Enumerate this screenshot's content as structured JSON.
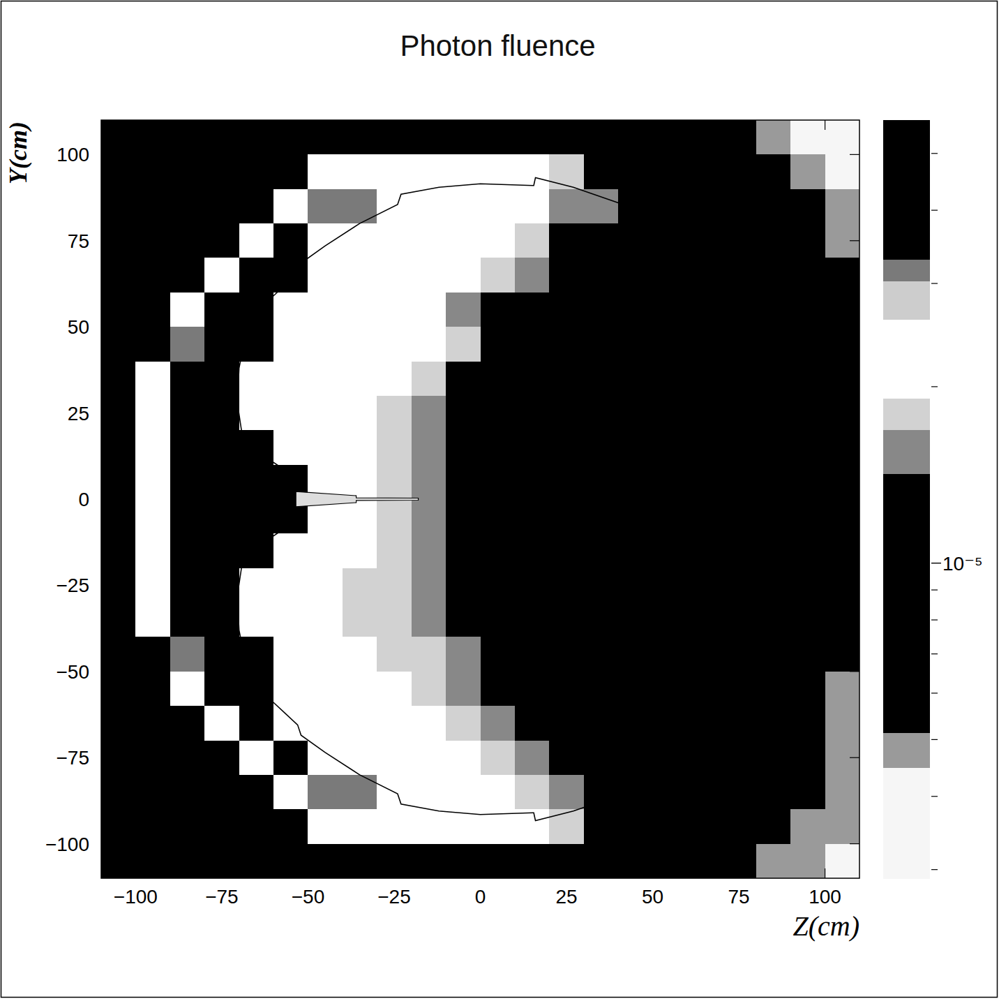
{
  "chart_data": {
    "type": "heatmap",
    "title": "Photon fluence",
    "x_label": "Z(cm)",
    "y_label": "Y(cm)",
    "xlim": [
      -110,
      110
    ],
    "ylim": [
      -110,
      110
    ],
    "xticks": [
      -100,
      -75,
      -50,
      -25,
      0,
      25,
      50,
      75,
      100
    ],
    "yticks": [
      -100,
      -75,
      -50,
      -25,
      0,
      25,
      50,
      75,
      100
    ],
    "log": true,
    "x_edges": [
      -110,
      -100,
      -90,
      -80,
      -70,
      -60,
      -50,
      -40,
      -30,
      -20,
      -10,
      0,
      10,
      20,
      30,
      40,
      50,
      60,
      70,
      80,
      90,
      100,
      110
    ],
    "y_edges": [
      110,
      100,
      90,
      80,
      70,
      60,
      50,
      40,
      30,
      20,
      10,
      0,
      -10,
      -20,
      -30,
      -40,
      -50,
      -60,
      -70,
      -80,
      -90,
      -100,
      -110
    ],
    "cells": [
      [
        7e-06,
        7e-06,
        7e-06,
        7e-06,
        7e-06,
        7e-06,
        7e-06,
        7e-06,
        7e-06,
        7e-06,
        7e-06,
        7e-06,
        7e-06,
        7e-06,
        7e-06,
        7e-06,
        7e-06,
        7e-06,
        7e-06,
        4.8e-06,
        3.5e-06,
        3.5e-06
      ],
      [
        7e-06,
        7e-06,
        7e-06,
        7e-06,
        7e-06,
        7e-06,
        2.2e-05,
        2.2e-05,
        2.2e-05,
        2.2e-05,
        2.2e-05,
        2.2e-05,
        2.2e-05,
        1.8e-05,
        7e-06,
        7e-06,
        7e-06,
        7e-06,
        7e-06,
        7e-06,
        4.8e-06,
        3.5e-06
      ],
      [
        7e-06,
        7e-06,
        7e-06,
        7e-06,
        7e-06,
        2.2e-05,
        3.1e-05,
        3.1e-05,
        2.2e-05,
        2.2e-05,
        2.2e-05,
        2.2e-05,
        2.2e-05,
        1.55e-05,
        1.55e-05,
        7e-06,
        7e-06,
        7e-06,
        7e-06,
        7e-06,
        7e-06,
        4.8e-06
      ],
      [
        7e-06,
        7e-06,
        7e-06,
        7e-06,
        2.2e-05,
        4e-05,
        2.2e-05,
        2.2e-05,
        2.2e-05,
        2.2e-05,
        2.2e-05,
        2.2e-05,
        1.8e-05,
        1.1e-05,
        1.1e-05,
        1.1e-05,
        1.1e-05,
        1.1e-05,
        7e-06,
        7e-06,
        7e-06,
        4.8e-06
      ],
      [
        7e-06,
        7e-06,
        7e-06,
        2.2e-05,
        4e-05,
        4e-05,
        2.2e-05,
        2.2e-05,
        2.2e-05,
        2.2e-05,
        2.2e-05,
        1.8e-05,
        1.55e-05,
        1.1e-05,
        1.1e-05,
        1.1e-05,
        1.1e-05,
        1.1e-05,
        7e-06,
        7e-06,
        7e-06,
        7e-06
      ],
      [
        7e-06,
        7e-06,
        2.2e-05,
        4e-05,
        4e-05,
        2.2e-05,
        2.2e-05,
        2.2e-05,
        2.2e-05,
        2.2e-05,
        1.55e-05,
        1.1e-05,
        1.1e-05,
        1.1e-05,
        1.1e-05,
        1.1e-05,
        1.1e-05,
        1.1e-05,
        1.1e-05,
        7e-06,
        7e-06,
        7e-06
      ],
      [
        7e-06,
        7e-06,
        3.1e-05,
        4e-05,
        4e-05,
        2.2e-05,
        2.2e-05,
        2.2e-05,
        2.2e-05,
        2.2e-05,
        1.8e-05,
        1.1e-05,
        1.1e-05,
        1.1e-05,
        1.1e-05,
        1.1e-05,
        1.1e-05,
        1.1e-05,
        1.1e-05,
        1.1e-05,
        7e-06,
        7e-06
      ],
      [
        7e-06,
        2.2e-05,
        4e-05,
        4e-05,
        2.2e-05,
        2.2e-05,
        2.2e-05,
        2.2e-05,
        2.2e-05,
        1.8e-05,
        1.1e-05,
        1.1e-05,
        1.1e-05,
        1.1e-05,
        1.1e-05,
        1.1e-05,
        1.1e-05,
        1.1e-05,
        1.1e-05,
        1.1e-05,
        7e-06,
        7e-06
      ],
      [
        7e-06,
        2.2e-05,
        4e-05,
        4e-05,
        2.2e-05,
        2.2e-05,
        2.2e-05,
        2.2e-05,
        1.8e-05,
        1.55e-05,
        1.1e-05,
        1.1e-05,
        1.1e-05,
        1.1e-05,
        1.1e-05,
        1.1e-05,
        1.1e-05,
        1.1e-05,
        1.1e-05,
        1.1e-05,
        1.1e-05,
        7e-06
      ],
      [
        7e-06,
        2.2e-05,
        4e-05,
        4e-05,
        4e-05,
        2.2e-05,
        2.2e-05,
        2.2e-05,
        1.8e-05,
        1.55e-05,
        1.1e-05,
        1.1e-05,
        1.1e-05,
        1.1e-05,
        1.1e-05,
        1.1e-05,
        1.1e-05,
        1.1e-05,
        1.1e-05,
        1.1e-05,
        1.1e-05,
        7e-06
      ],
      [
        7e-06,
        2.2e-05,
        4e-05,
        4e-05,
        4e-05,
        4e-05,
        2.2e-05,
        2.2e-05,
        1.8e-05,
        1.55e-05,
        1.1e-05,
        1.1e-05,
        1.1e-05,
        1.1e-05,
        1.1e-05,
        1.1e-05,
        1.1e-05,
        1.1e-05,
        1.1e-05,
        1.1e-05,
        1.1e-05,
        7e-06
      ],
      [
        7e-06,
        2.2e-05,
        4e-05,
        4e-05,
        4e-05,
        4e-05,
        2.2e-05,
        2.2e-05,
        1.8e-05,
        1.55e-05,
        1.1e-05,
        1.1e-05,
        1.1e-05,
        1.1e-05,
        1.1e-05,
        1.1e-05,
        1.1e-05,
        1.1e-05,
        1.1e-05,
        1.1e-05,
        1.1e-05,
        7e-06
      ],
      [
        7e-06,
        2.2e-05,
        4e-05,
        4e-05,
        4e-05,
        2.2e-05,
        2.2e-05,
        2.2e-05,
        1.8e-05,
        1.55e-05,
        1.1e-05,
        1.1e-05,
        1.1e-05,
        1.1e-05,
        1.1e-05,
        1.1e-05,
        1.1e-05,
        1.1e-05,
        1.1e-05,
        1.1e-05,
        1.1e-05,
        7e-06
      ],
      [
        7e-06,
        2.2e-05,
        4e-05,
        4e-05,
        2.2e-05,
        2.2e-05,
        2.2e-05,
        1.8e-05,
        1.8e-05,
        1.55e-05,
        1.1e-05,
        1.1e-05,
        1.1e-05,
        1.1e-05,
        1.1e-05,
        1.1e-05,
        1.1e-05,
        1.1e-05,
        1.1e-05,
        1.1e-05,
        1.1e-05,
        7e-06
      ],
      [
        7e-06,
        2.2e-05,
        4e-05,
        4e-05,
        2.2e-05,
        2.2e-05,
        2.2e-05,
        1.8e-05,
        1.8e-05,
        1.55e-05,
        1.1e-05,
        1.1e-05,
        1.1e-05,
        1.1e-05,
        1.1e-05,
        1.1e-05,
        1.1e-05,
        1.1e-05,
        1.1e-05,
        1.1e-05,
        7e-06,
        7e-06
      ],
      [
        7e-06,
        7e-06,
        3.1e-05,
        4e-05,
        4e-05,
        2.2e-05,
        2.2e-05,
        2.2e-05,
        1.8e-05,
        1.8e-05,
        1.55e-05,
        1.1e-05,
        1.1e-05,
        1.1e-05,
        1.1e-05,
        1.1e-05,
        1.1e-05,
        1.1e-05,
        1.1e-05,
        1.1e-05,
        7e-06,
        7e-06
      ],
      [
        7e-06,
        7e-06,
        2.2e-05,
        4e-05,
        4e-05,
        2.2e-05,
        2.2e-05,
        2.2e-05,
        2.2e-05,
        1.8e-05,
        1.55e-05,
        1.1e-05,
        1.1e-05,
        1.1e-05,
        1.1e-05,
        1.1e-05,
        1.1e-05,
        1.1e-05,
        1.1e-05,
        7e-06,
        7e-06,
        4.8e-06
      ],
      [
        7e-06,
        7e-06,
        7e-06,
        2.2e-05,
        4e-05,
        2.2e-05,
        2.2e-05,
        2.2e-05,
        2.2e-05,
        2.2e-05,
        1.8e-05,
        1.55e-05,
        1.1e-05,
        1.1e-05,
        1.1e-05,
        1.1e-05,
        1.1e-05,
        1.1e-05,
        7e-06,
        7e-06,
        7e-06,
        4.8e-06
      ],
      [
        7e-06,
        7e-06,
        7e-06,
        7e-06,
        2.2e-05,
        4e-05,
        2.2e-05,
        2.2e-05,
        2.2e-05,
        2.2e-05,
        2.2e-05,
        1.8e-05,
        1.55e-05,
        1.1e-05,
        1.1e-05,
        1.1e-05,
        1.1e-05,
        1.1e-05,
        7e-06,
        7e-06,
        7e-06,
        4.8e-06
      ],
      [
        7e-06,
        7e-06,
        7e-06,
        7e-06,
        7e-06,
        2.2e-05,
        3.1e-05,
        3.1e-05,
        2.2e-05,
        2.2e-05,
        2.2e-05,
        2.2e-05,
        1.8e-05,
        1.55e-05,
        7e-06,
        7e-06,
        7e-06,
        7e-06,
        7e-06,
        7e-06,
        7e-06,
        4.8e-06
      ],
      [
        7e-06,
        7e-06,
        7e-06,
        7e-06,
        7e-06,
        7e-06,
        2.2e-05,
        2.2e-05,
        2.2e-05,
        2.2e-05,
        2.2e-05,
        2.2e-05,
        2.2e-05,
        1.8e-05,
        7e-06,
        7e-06,
        7e-06,
        7e-06,
        7e-06,
        7e-06,
        4.8e-06,
        4.8e-06
      ],
      [
        7e-06,
        7e-06,
        7e-06,
        7e-06,
        7e-06,
        7e-06,
        7e-06,
        7e-06,
        7e-06,
        7e-06,
        7e-06,
        7e-06,
        7e-06,
        7e-06,
        7e-06,
        7e-06,
        7e-06,
        7e-06,
        7e-06,
        4.8e-06,
        4.8e-06,
        3.5e-06
      ]
    ],
    "color_range": [
      2.9e-06,
      5.7e-05
    ],
    "color_ticks": [
      {
        "value": 1e-05,
        "label": "10⁻⁵"
      }
    ],
    "color_minor_ticks": [
      3e-06,
      4e-06,
      5e-06,
      6e-06,
      7e-06,
      8e-06,
      9e-06,
      2e-05,
      3e-05,
      4e-05,
      5e-05
    ],
    "outline": [
      [
        67.5,
        67.7
      ],
      [
        55,
        77.5
      ],
      [
        40,
        86
      ],
      [
        27,
        90.5
      ],
      [
        16,
        93.3
      ],
      [
        15.5,
        91
      ],
      [
        0,
        91.5
      ],
      [
        -12,
        90.5
      ],
      [
        -23,
        88.5
      ],
      [
        -24,
        85.5
      ],
      [
        -35,
        80
      ],
      [
        -45,
        73.5
      ],
      [
        -52,
        68.5
      ],
      [
        -53,
        65.5
      ],
      [
        -60,
        59
      ],
      [
        -65,
        54.5
      ],
      [
        -66,
        51
      ],
      [
        -69,
        43
      ],
      [
        -70,
        38
      ],
      [
        -70.5,
        28
      ],
      [
        -69,
        18
      ],
      [
        -62,
        12
      ],
      [
        -56,
        8
      ],
      [
        -55,
        7
      ],
      [
        -55,
        -7
      ],
      [
        -56,
        -8
      ],
      [
        -62,
        -12
      ],
      [
        -69,
        -18
      ],
      [
        -70.5,
        -28
      ],
      [
        -70,
        -38
      ],
      [
        -69,
        -43
      ],
      [
        -66,
        -51
      ],
      [
        -65,
        -54.5
      ],
      [
        -60,
        -59
      ],
      [
        -53,
        -65.5
      ],
      [
        -52,
        -68.5
      ],
      [
        -45,
        -73.5
      ],
      [
        -35,
        -80
      ],
      [
        -24,
        -85.5
      ],
      [
        -23,
        -88.5
      ],
      [
        -12,
        -90.5
      ],
      [
        0,
        -91.5
      ],
      [
        15.5,
        -91
      ],
      [
        16,
        -93.3
      ],
      [
        27,
        -90.5
      ],
      [
        40,
        -86
      ],
      [
        55,
        -77.5
      ],
      [
        67.5,
        -67.7
      ]
    ],
    "needle": [
      [
        -53.5,
        2.2
      ],
      [
        -36,
        1
      ],
      [
        -36,
        0.4
      ],
      [
        -18,
        0.3
      ],
      [
        -18,
        -0.3
      ],
      [
        -36,
        -0.4
      ],
      [
        -36,
        -1
      ],
      [
        -53.5,
        -2.2
      ]
    ]
  }
}
